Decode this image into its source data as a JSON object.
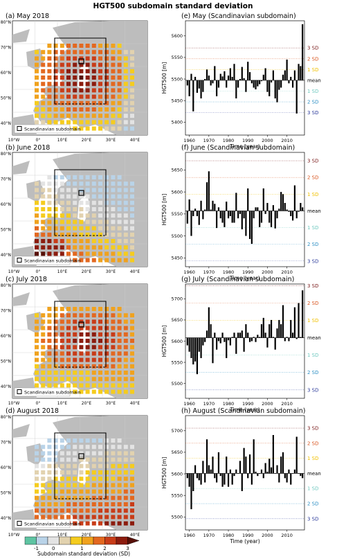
{
  "figure_title": "HGT500 subdomain standard deviation",
  "colors": {
    "bins": [
      "#5ec4a2",
      "#b9d3e8",
      "#e3e3e3",
      "#e2d2af",
      "#f5cc1e",
      "#f0a21e",
      "#e36820",
      "#c83c18",
      "#8c1c0e",
      "#571008"
    ],
    "land": "#bdbdbd",
    "sea": "#ffffff",
    "bar": "#000000",
    "sd_levels": {
      "+3": "#7a1a1a",
      "+2": "#d9541e",
      "+1": "#f0c000",
      "mean": "#000000",
      "-1": "#70c9c0",
      "-2": "#2d8fc4",
      "-3": "#2b3a9a"
    }
  },
  "maps": [
    {
      "label": "(a) May 2018",
      "legend": "Scandinavian subdomain",
      "month": "may"
    },
    {
      "label": "(b) June 2018",
      "legend": "Scandinavian subdomain",
      "month": "june"
    },
    {
      "label": "(c) July 2018",
      "legend": "Scandinavian subdomain",
      "month": "july"
    },
    {
      "label": "(d) August 2018",
      "legend": "Scandinavian subdomain",
      "month": "august"
    }
  ],
  "map_axes": {
    "lat_ticks": [
      "80°N",
      "70°N",
      "60°N",
      "50°N",
      "40°N"
    ],
    "lon_ticks": [
      "10°W",
      "0°",
      "10°E",
      "20°E",
      "30°E",
      "40°E"
    ]
  },
  "colorbar": {
    "ticks": [
      "-1",
      "0",
      "1",
      "2",
      "3"
    ],
    "label": "Subdomain standard deviation (SD)"
  },
  "chart_data": [
    {
      "type": "bar",
      "title": "(e) May (Scandinavian subdomain)",
      "xlabel": "Time (year)",
      "ylabel": "HGT500 [m]",
      "xlim": [
        1958,
        2019
      ],
      "ylim": [
        5370,
        5635
      ],
      "yticks": [
        5400,
        5450,
        5500,
        5550,
        5600
      ],
      "xticks": [
        1960,
        1970,
        1980,
        1990,
        2000,
        2010
      ],
      "mean": 5497,
      "sd": 25,
      "sd_labels": [
        "3 SD",
        "2 SD",
        "1 SD",
        "mean",
        "1 SD",
        "2 SD",
        "3 SD"
      ],
      "x": [
        1959,
        1960,
        1961,
        1962,
        1963,
        1964,
        1965,
        1966,
        1967,
        1968,
        1969,
        1970,
        1971,
        1972,
        1973,
        1974,
        1975,
        1976,
        1977,
        1978,
        1979,
        1980,
        1981,
        1982,
        1983,
        1984,
        1985,
        1986,
        1987,
        1988,
        1989,
        1990,
        1991,
        1992,
        1993,
        1994,
        1995,
        1996,
        1997,
        1998,
        1999,
        2000,
        2001,
        2002,
        2003,
        2004,
        2005,
        2006,
        2007,
        2008,
        2009,
        2010,
        2011,
        2012,
        2013,
        2014,
        2015,
        2016,
        2017,
        2018
      ],
      "values": [
        5485,
        5460,
        5512,
        5425,
        5505,
        5468,
        5478,
        5455,
        5470,
        5500,
        5522,
        5508,
        5485,
        5490,
        5530,
        5460,
        5480,
        5512,
        5506,
        5518,
        5480,
        5508,
        5525,
        5505,
        5535,
        5455,
        5480,
        5500,
        5528,
        5502,
        5470,
        5540,
        5516,
        5490,
        5480,
        5476,
        5483,
        5488,
        5495,
        5510,
        5525,
        5470,
        5460,
        5492,
        5520,
        5455,
        5446,
        5475,
        5480,
        5510,
        5520,
        5545,
        5490,
        5505,
        5480,
        5520,
        5420,
        5535,
        5530,
        5627
      ]
    },
    {
      "type": "bar",
      "title": "(f) June (Scandinavian subdomain)",
      "xlabel": "Time (year)",
      "ylabel": "HGT500 [m]",
      "xlim": [
        1958,
        2019
      ],
      "ylim": [
        5430,
        5690
      ],
      "yticks": [
        5450,
        5500,
        5550,
        5600,
        5650
      ],
      "xticks": [
        1960,
        1970,
        1980,
        1990,
        2000,
        2010
      ],
      "mean": 5557,
      "sd": 38,
      "sd_labels": [
        "3 SD",
        "2 SD",
        "1 SD",
        "mean",
        "1 SD",
        "2 SD",
        "3 SD"
      ],
      "x": [
        1959,
        1960,
        1961,
        1962,
        1963,
        1964,
        1965,
        1966,
        1967,
        1968,
        1969,
        1970,
        1971,
        1972,
        1973,
        1974,
        1975,
        1976,
        1977,
        1978,
        1979,
        1980,
        1981,
        1982,
        1983,
        1984,
        1985,
        1986,
        1987,
        1988,
        1989,
        1990,
        1991,
        1992,
        1993,
        1994,
        1995,
        1996,
        1997,
        1998,
        1999,
        2000,
        2001,
        2002,
        2003,
        2004,
        2005,
        2006,
        2007,
        2008,
        2009,
        2010,
        2011,
        2012,
        2013,
        2014,
        2015,
        2016,
        2017,
        2018
      ],
      "values": [
        5528,
        5583,
        5500,
        5545,
        5562,
        5545,
        5525,
        5580,
        5538,
        5560,
        5622,
        5647,
        5560,
        5580,
        5573,
        5518,
        5565,
        5540,
        5530,
        5520,
        5578,
        5540,
        5545,
        5530,
        5530,
        5598,
        5540,
        5550,
        5515,
        5540,
        5500,
        5608,
        5493,
        5482,
        5540,
        5565,
        5565,
        5520,
        5530,
        5608,
        5550,
        5575,
        5530,
        5520,
        5570,
        5517,
        5540,
        5562,
        5600,
        5595,
        5575,
        5560,
        5555,
        5545,
        5535,
        5615,
        5540,
        5555,
        5575,
        5565
      ]
    },
    {
      "type": "bar",
      "title": "(g) July (Scandinavian subdomain)",
      "xlabel": "Time (year)",
      "ylabel": "HGT500 [m]",
      "xlim": [
        1958,
        2019
      ],
      "ylim": [
        5465,
        5735
      ],
      "yticks": [
        5500,
        5550,
        5600,
        5650,
        5700
      ],
      "xticks": [
        1960,
        1970,
        1980,
        1990,
        2000,
        2010
      ],
      "mean": 5608,
      "sd": 41,
      "sd_labels": [
        "3 SD",
        "2 SD",
        "1 SD",
        "mean",
        "1 SD",
        "2 SD",
        "3 SD"
      ],
      "x": [
        1959,
        1960,
        1961,
        1962,
        1963,
        1964,
        1965,
        1966,
        1967,
        1968,
        1969,
        1970,
        1971,
        1972,
        1973,
        1974,
        1975,
        1976,
        1977,
        1978,
        1979,
        1980,
        1981,
        1982,
        1983,
        1984,
        1985,
        1986,
        1987,
        1988,
        1989,
        1990,
        1991,
        1992,
        1993,
        1994,
        1995,
        1996,
        1997,
        1998,
        1999,
        2000,
        2001,
        2002,
        2003,
        2004,
        2005,
        2006,
        2007,
        2008,
        2009,
        2010,
        2011,
        2012,
        2013,
        2014,
        2015,
        2016,
        2017,
        2018
      ],
      "values": [
        5590,
        5575,
        5560,
        5545,
        5552,
        5522,
        5575,
        5560,
        5590,
        5598,
        5625,
        5680,
        5640,
        5548,
        5620,
        5580,
        5600,
        5595,
        5620,
        5598,
        5560,
        5602,
        5590,
        5610,
        5620,
        5570,
        5620,
        5620,
        5625,
        5575,
        5640,
        5620,
        5598,
        5600,
        5610,
        5598,
        5615,
        5610,
        5640,
        5655,
        5620,
        5585,
        5640,
        5650,
        5610,
        5580,
        5630,
        5650,
        5640,
        5685,
        5600,
        5610,
        5600,
        5650,
        5620,
        5680,
        5605,
        5690,
        5610,
        5720
      ]
    },
    {
      "type": "bar",
      "title": "(h) August (Scandinavian subdomain)",
      "xlabel": "Time (year)",
      "ylabel": "HGT500 [m]",
      "xlim": [
        1958,
        2019
      ],
      "ylim": [
        5470,
        5735
      ],
      "yticks": [
        5500,
        5550,
        5600,
        5650,
        5700
      ],
      "xticks": [
        1960,
        1970,
        1980,
        1990,
        2000,
        2010
      ],
      "mean": 5601,
      "sd": 35,
      "sd_labels": [
        "3 SD",
        "2 SD",
        "1 SD",
        "mean",
        "1 SD",
        "2 SD",
        "3 SD"
      ],
      "x": [
        1959,
        1960,
        1961,
        1962,
        1963,
        1964,
        1965,
        1966,
        1967,
        1968,
        1969,
        1970,
        1971,
        1972,
        1973,
        1974,
        1975,
        1976,
        1977,
        1978,
        1979,
        1980,
        1981,
        1982,
        1983,
        1984,
        1985,
        1986,
        1987,
        1988,
        1989,
        1990,
        1991,
        1992,
        1993,
        1994,
        1995,
        1996,
        1997,
        1998,
        1999,
        2000,
        2001,
        2002,
        2003,
        2004,
        2005,
        2006,
        2007,
        2008,
        2009,
        2010,
        2011,
        2012,
        2013,
        2014,
        2015,
        2016,
        2017,
        2018
      ],
      "values": [
        5590,
        5570,
        5518,
        5560,
        5620,
        5590,
        5585,
        5575,
        5630,
        5580,
        5680,
        5620,
        5610,
        5640,
        5590,
        5580,
        5650,
        5595,
        5570,
        5575,
        5640,
        5570,
        5610,
        5575,
        5595,
        5610,
        5600,
        5630,
        5560,
        5660,
        5640,
        5590,
        5645,
        5575,
        5680,
        5605,
        5595,
        5600,
        5610,
        5590,
        5625,
        5605,
        5635,
        5615,
        5690,
        5600,
        5620,
        5580,
        5640,
        5650,
        5590,
        5580,
        5610,
        5575,
        5600,
        5610,
        5686,
        5600,
        5595,
        5590
      ]
    }
  ]
}
